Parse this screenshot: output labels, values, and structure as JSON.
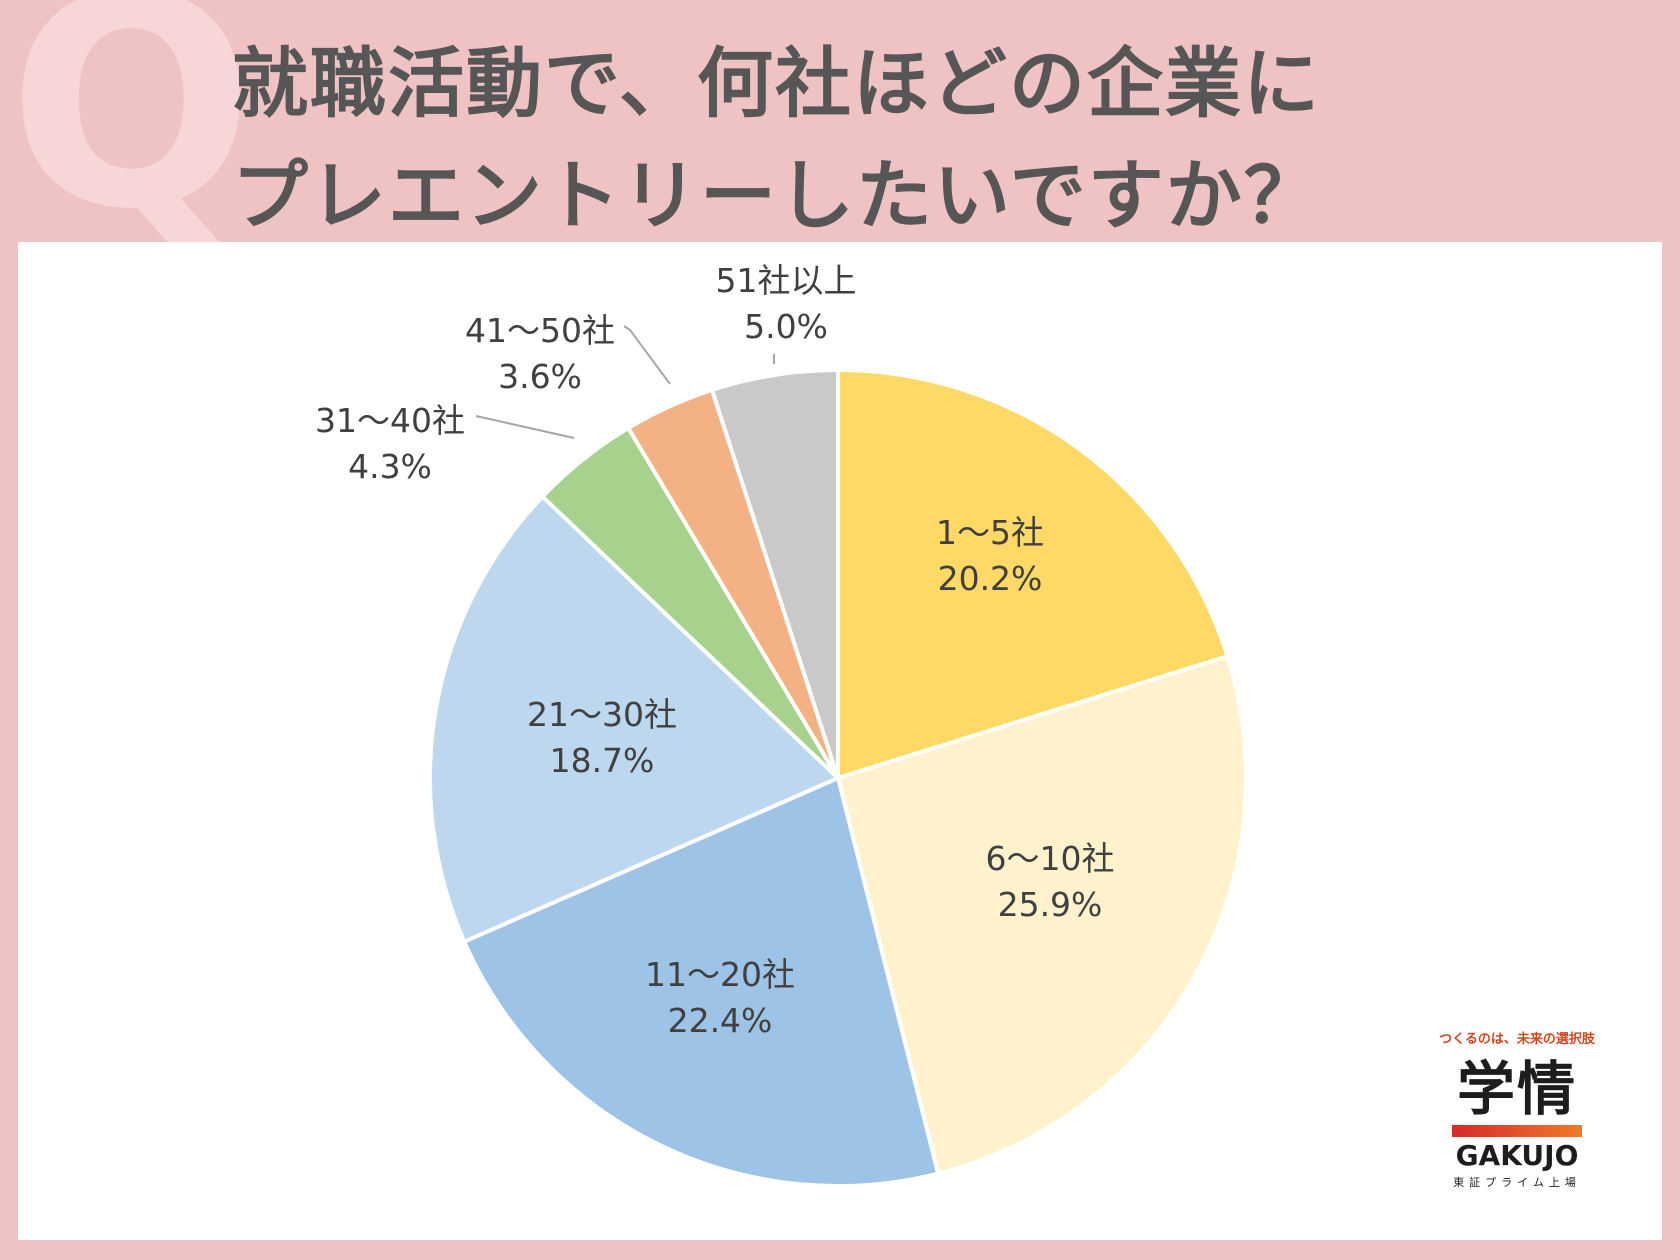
{
  "header": {
    "q_mark": "Q",
    "title_line1": "就職活動で、何社ほどの企業に",
    "title_line2": "プレエントリーしたいですか？"
  },
  "chart_data": {
    "type": "pie",
    "start": "12 o'clock, clockwise",
    "slices": [
      {
        "label": "1～5社",
        "value": 20.2,
        "display": "20.2%",
        "color": "#ffd966"
      },
      {
        "label": "6～10社",
        "value": 25.9,
        "display": "25.9%",
        "color": "#fff2cc"
      },
      {
        "label": "11～20社",
        "value": 22.4,
        "display": "22.4%",
        "color": "#9dc3e6"
      },
      {
        "label": "21～30社",
        "value": 18.7,
        "display": "18.7%",
        "color": "#bdd7ee"
      },
      {
        "label": "31～40社",
        "value": 4.3,
        "display": "4.3%",
        "color": "#a9d18e"
      },
      {
        "label": "41～50社",
        "value": 3.6,
        "display": "3.6%",
        "color": "#f4b183"
      },
      {
        "label": "51社以上",
        "value": 5.0,
        "display": "5.0%",
        "color": "#c9c9c9"
      }
    ]
  },
  "logo": {
    "tagline": "つくるのは、未来の選択肢",
    "name_jp": "学情",
    "name_en": "GAKUJO",
    "subtitle": "東証プライム上場"
  }
}
